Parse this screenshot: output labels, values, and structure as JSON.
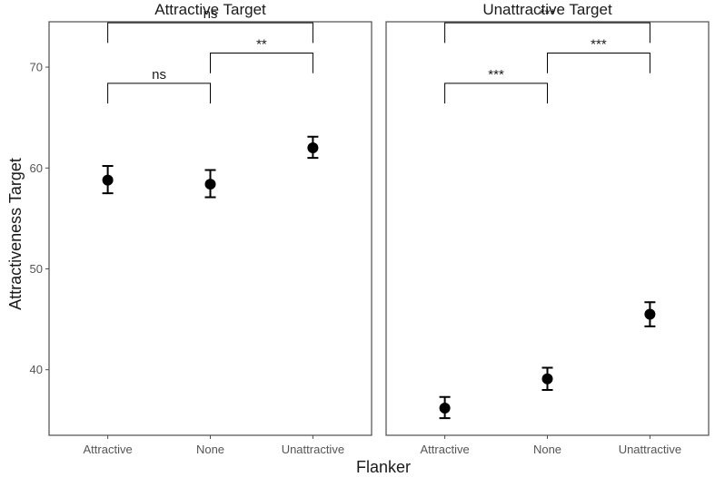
{
  "chart_data": {
    "type": "scatter",
    "xlabel": "Flanker",
    "ylabel": "Attractiveness Target",
    "ylim": [
      33.5,
      74.5
    ],
    "yticks": [
      40,
      50,
      60,
      70
    ],
    "grid": false,
    "categories": [
      "Attractive",
      "None",
      "Unattractive"
    ],
    "facets": [
      {
        "title": "Attractive Target",
        "points": [
          {
            "x": "Attractive",
            "y": 58.8,
            "lower": 57.5,
            "upper": 60.2
          },
          {
            "x": "None",
            "y": 58.4,
            "lower": 57.1,
            "upper": 59.8
          },
          {
            "x": "Unattractive",
            "y": 62.0,
            "lower": 61.0,
            "upper": 63.1
          }
        ],
        "comparisons": [
          {
            "from": "Attractive",
            "to": "None",
            "label": "ns",
            "y": 68.4
          },
          {
            "from": "None",
            "to": "Unattractive",
            "label": "**",
            "y": 71.4
          },
          {
            "from": "Attractive",
            "to": "Unattractive",
            "label": "ns",
            "y": 74.4
          }
        ]
      },
      {
        "title": "Unattractive Target",
        "points": [
          {
            "x": "Attractive",
            "y": 36.2,
            "lower": 35.2,
            "upper": 37.3
          },
          {
            "x": "None",
            "y": 39.1,
            "lower": 38.0,
            "upper": 40.2
          },
          {
            "x": "Unattractive",
            "y": 45.5,
            "lower": 44.3,
            "upper": 46.7
          }
        ],
        "comparisons": [
          {
            "from": "Attractive",
            "to": "None",
            "label": "***",
            "y": 68.4
          },
          {
            "from": "None",
            "to": "Unattractive",
            "label": "***",
            "y": 71.4
          },
          {
            "from": "Attractive",
            "to": "Unattractive",
            "label": "***",
            "y": 74.4
          }
        ]
      }
    ]
  }
}
